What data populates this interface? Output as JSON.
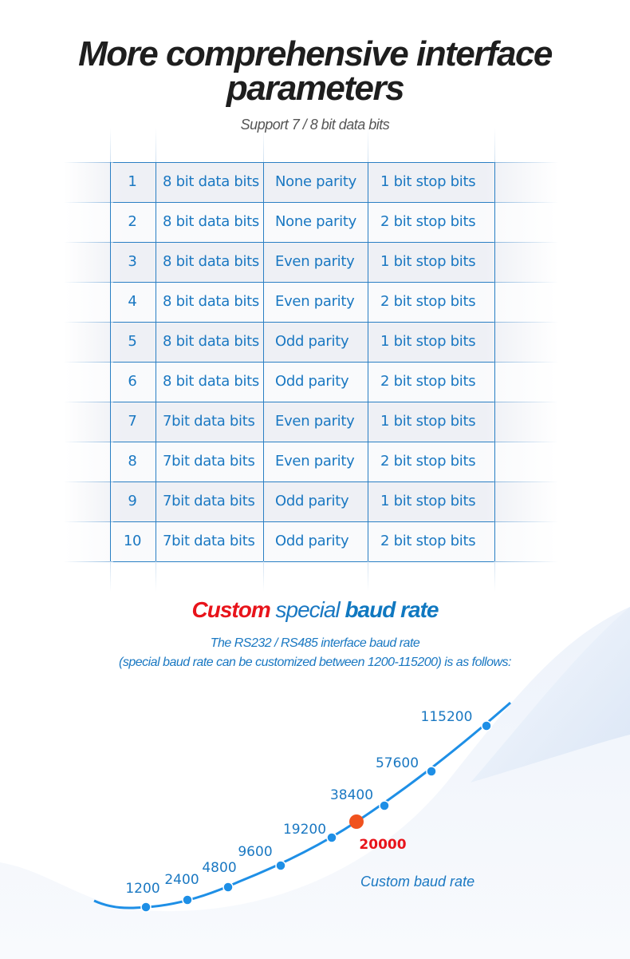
{
  "title_line1": "More comprehensive interface",
  "title_line2": "parameters",
  "subtitle": "Support 7 / 8 bit data bits",
  "table": {
    "rows": [
      [
        "1",
        "8 bit data bits",
        "None parity",
        "1 bit stop bits"
      ],
      [
        "2",
        "8 bit data bits",
        "None parity",
        "2 bit stop bits"
      ],
      [
        "3",
        "8 bit data bits",
        "Even parity",
        "1 bit stop bits"
      ],
      [
        "4",
        "8 bit data bits",
        "Even parity",
        "2 bit stop bits"
      ],
      [
        "5",
        "8 bit data bits",
        "Odd parity",
        "1 bit stop bits"
      ],
      [
        "6",
        "8 bit data bits",
        "Odd parity",
        "2 bit stop bits"
      ],
      [
        "7",
        "7bit data bits",
        "Even parity",
        "1 bit stop bits"
      ],
      [
        "8",
        "7bit data bits",
        "Even parity",
        "2 bit stop bits"
      ],
      [
        "9",
        "7bit data bits",
        "Odd parity",
        "1 bit stop bits"
      ],
      [
        "10",
        "7bit data bits",
        "Odd parity",
        "2 bit stop bits"
      ]
    ]
  },
  "baud": {
    "heading_custom": "Custom",
    "heading_special": " special ",
    "heading_baud": "baud rate",
    "desc_line1": "The RS232 / RS485 interface baud rate",
    "desc_line2": "(special baud rate can be customized between 1200-115200) is as follows:",
    "rates": [
      "1200",
      "2400",
      "4800",
      "9600",
      "19200",
      "38400",
      "57600",
      "115200"
    ],
    "custom_rate": "20000",
    "custom_label": "Custom baud rate",
    "colors": {
      "accent": "#1a78c2",
      "custom": "#e8141b",
      "dot": "#1e8fe6"
    }
  }
}
